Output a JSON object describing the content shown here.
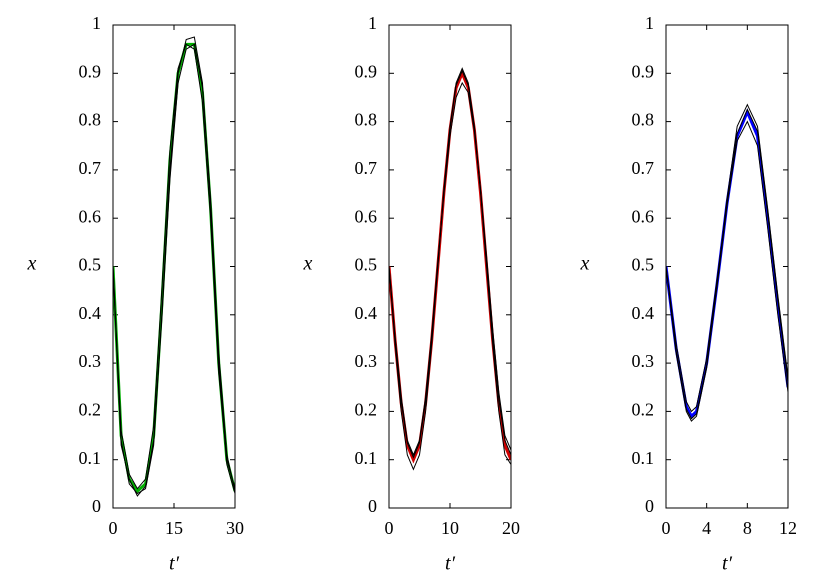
{
  "chart_data": [
    {
      "type": "line",
      "x_label": "t′",
      "y_label": "x",
      "xlim": [
        0,
        30
      ],
      "xticks": [
        0,
        15,
        30
      ],
      "ylim": [
        0,
        1
      ],
      "yticks": [
        0,
        0.1,
        0.2,
        0.3,
        0.4,
        0.5,
        0.6,
        0.7,
        0.8,
        0.9,
        1
      ],
      "x": [
        0,
        2,
        4,
        6,
        8,
        10,
        12,
        14,
        16,
        18,
        20,
        22,
        24,
        26,
        28,
        30
      ],
      "series": [
        {
          "color": "#00b000",
          "values": [
            0.5,
            0.15,
            0.06,
            0.035,
            0.05,
            0.15,
            0.42,
            0.72,
            0.9,
            0.96,
            0.96,
            0.86,
            0.62,
            0.3,
            0.1,
            0.035
          ]
        },
        {
          "color": "#000000",
          "values": [
            0.5,
            0.14,
            0.05,
            0.03,
            0.04,
            0.13,
            0.4,
            0.7,
            0.9,
            0.97,
            0.975,
            0.88,
            0.63,
            0.3,
            0.09,
            0.03
          ]
        },
        {
          "color": "#000000",
          "values": [
            0.5,
            0.16,
            0.07,
            0.04,
            0.06,
            0.17,
            0.45,
            0.74,
            0.91,
            0.96,
            0.95,
            0.84,
            0.6,
            0.28,
            0.1,
            0.04
          ]
        },
        {
          "color": "#000000",
          "values": [
            0.5,
            0.13,
            0.06,
            0.025,
            0.045,
            0.14,
            0.39,
            0.68,
            0.88,
            0.95,
            0.96,
            0.87,
            0.64,
            0.32,
            0.11,
            0.035
          ]
        }
      ]
    },
    {
      "type": "line",
      "x_label": "t′",
      "y_label": "x",
      "xlim": [
        0,
        20
      ],
      "xticks": [
        0,
        10,
        20
      ],
      "ylim": [
        0,
        1
      ],
      "yticks": [
        0,
        0.1,
        0.2,
        0.3,
        0.4,
        0.5,
        0.6,
        0.7,
        0.8,
        0.9,
        1
      ],
      "x": [
        0,
        1,
        2,
        3,
        4,
        5,
        6,
        7,
        8,
        9,
        10,
        11,
        12,
        13,
        14,
        15,
        16,
        17,
        18,
        19,
        20
      ],
      "series": [
        {
          "color": "#d00000",
          "values": [
            0.5,
            0.347,
            0.217,
            0.13,
            0.1,
            0.13,
            0.217,
            0.347,
            0.5,
            0.653,
            0.783,
            0.87,
            0.9,
            0.87,
            0.783,
            0.653,
            0.5,
            0.347,
            0.217,
            0.13,
            0.1
          ]
        },
        {
          "color": "#000000",
          "values": [
            0.5,
            0.34,
            0.2,
            0.11,
            0.08,
            0.11,
            0.2,
            0.34,
            0.5,
            0.66,
            0.79,
            0.88,
            0.91,
            0.88,
            0.79,
            0.66,
            0.5,
            0.34,
            0.2,
            0.11,
            0.09
          ]
        },
        {
          "color": "#000000",
          "values": [
            0.5,
            0.355,
            0.23,
            0.14,
            0.11,
            0.14,
            0.23,
            0.36,
            0.51,
            0.65,
            0.77,
            0.85,
            0.88,
            0.86,
            0.78,
            0.66,
            0.52,
            0.37,
            0.24,
            0.15,
            0.12
          ]
        },
        {
          "color": "#000000",
          "values": [
            0.5,
            0.35,
            0.22,
            0.135,
            0.105,
            0.135,
            0.22,
            0.35,
            0.5,
            0.655,
            0.785,
            0.875,
            0.905,
            0.875,
            0.785,
            0.655,
            0.505,
            0.355,
            0.225,
            0.14,
            0.11
          ]
        }
      ]
    },
    {
      "type": "line",
      "x_label": "t′",
      "y_label": "x",
      "xlim": [
        0,
        12
      ],
      "xticks": [
        0,
        4,
        8,
        12
      ],
      "ylim": [
        0,
        1
      ],
      "yticks": [
        0,
        0.1,
        0.2,
        0.3,
        0.4,
        0.5,
        0.6,
        0.7,
        0.8,
        0.9,
        1
      ],
      "x": [
        0,
        1,
        2,
        2.5,
        3,
        4,
        5,
        6,
        7,
        8,
        9,
        10,
        11,
        12
      ],
      "series": [
        {
          "color": "#0000ff",
          "values": [
            0.5,
            0.33,
            0.21,
            0.19,
            0.2,
            0.3,
            0.46,
            0.63,
            0.77,
            0.82,
            0.77,
            0.6,
            0.42,
            0.25
          ]
        },
        {
          "color": "#000000",
          "values": [
            0.5,
            0.32,
            0.2,
            0.18,
            0.19,
            0.29,
            0.46,
            0.64,
            0.79,
            0.835,
            0.79,
            0.62,
            0.44,
            0.27
          ]
        },
        {
          "color": "#000000",
          "values": [
            0.5,
            0.34,
            0.22,
            0.2,
            0.21,
            0.31,
            0.47,
            0.63,
            0.76,
            0.8,
            0.75,
            0.58,
            0.4,
            0.24
          ]
        },
        {
          "color": "#000000",
          "values": [
            0.5,
            0.325,
            0.205,
            0.185,
            0.195,
            0.295,
            0.455,
            0.625,
            0.775,
            0.825,
            0.78,
            0.61,
            0.43,
            0.26
          ]
        }
      ]
    }
  ]
}
